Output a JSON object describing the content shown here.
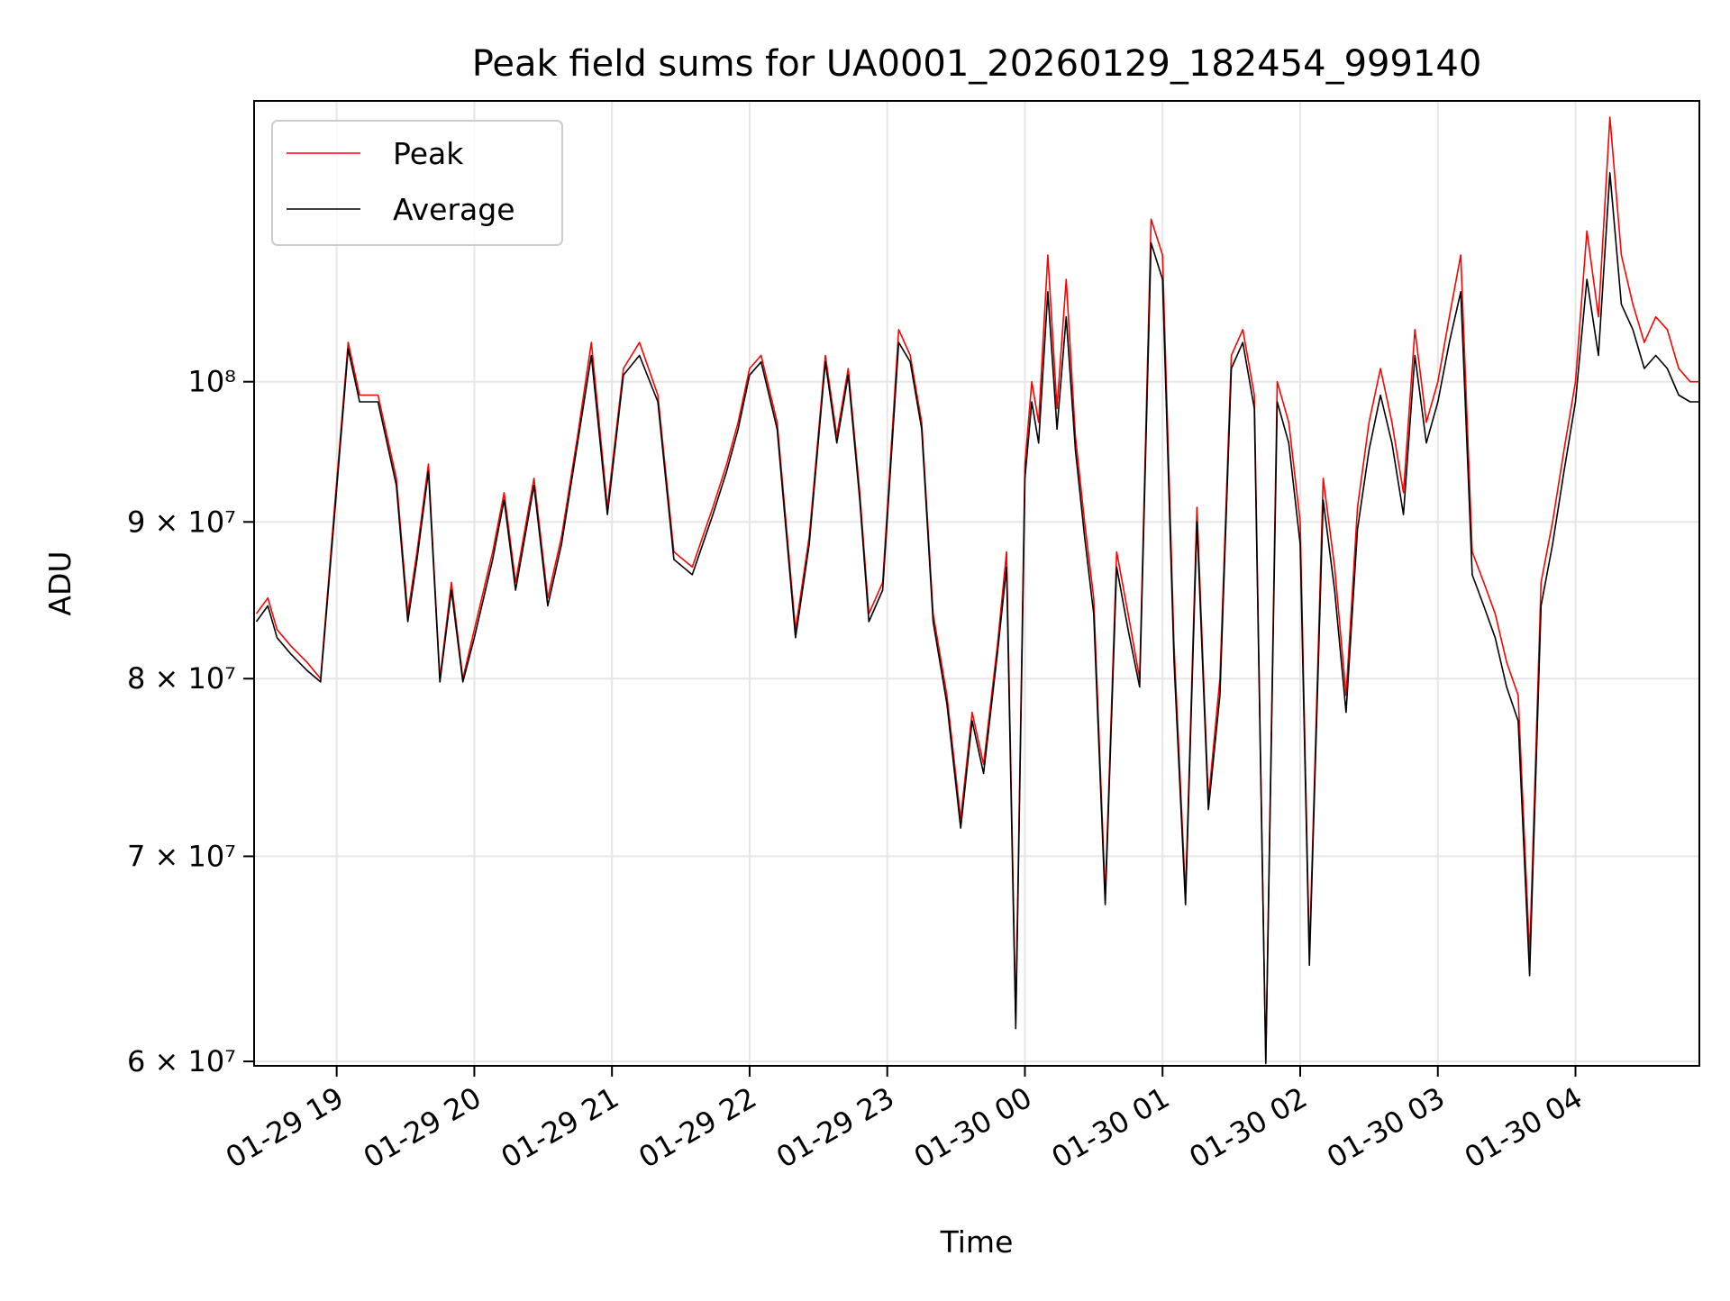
{
  "chart_data": {
    "type": "line",
    "title": "Peak field sums for UA0001_20260129_182454_999140",
    "xlabel": "Time",
    "ylabel": "ADU",
    "y_scale": "log",
    "grid": true,
    "legend_position": "top-left",
    "x_tick_labels": [
      "01-29 19",
      "01-29 20",
      "01-29 21",
      "01-29 22",
      "01-29 23",
      "01-30 00",
      "01-30 01",
      "01-30 02",
      "01-30 03",
      "01-30 04"
    ],
    "y_tick_labels": [
      {
        "value": 60000000,
        "label": "6 × 10⁷"
      },
      {
        "value": 70000000,
        "label": "7 × 10⁷"
      },
      {
        "value": 80000000,
        "label": "8 × 10⁷"
      },
      {
        "value": 90000000,
        "label": "9 × 10⁷"
      },
      {
        "value": 100000000,
        "label": "10⁸"
      }
    ],
    "x_range_hours_since_2026-01-29T18:24": [
      0,
      10.5
    ],
    "ylim": [
      59800000,
      123500000
    ],
    "series": [
      {
        "name": "Peak",
        "color": "#ff0000",
        "x_time": [
          "01-29 18:25",
          "01-29 18:30",
          "01-29 18:34",
          "01-29 18:40",
          "01-29 18:47",
          "01-29 18:53",
          "01-29 18:58",
          "01-29 19:05",
          "01-29 19:10",
          "01-29 19:18",
          "01-29 19:26",
          "01-29 19:31",
          "01-29 19:35",
          "01-29 19:40",
          "01-29 19:45",
          "01-29 19:50",
          "01-29 19:55",
          "01-29 20:00",
          "01-29 20:08",
          "01-29 20:13",
          "01-29 20:18",
          "01-29 20:26",
          "01-29 20:32",
          "01-29 20:38",
          "01-29 20:45",
          "01-29 20:51",
          "01-29 20:58",
          "01-29 21:05",
          "01-29 21:12",
          "01-29 21:20",
          "01-29 21:27",
          "01-29 21:35",
          "01-29 21:44",
          "01-29 21:50",
          "01-29 21:55",
          "01-29 22:00",
          "01-29 22:05",
          "01-29 22:12",
          "01-29 22:20",
          "01-29 22:26",
          "01-29 22:33",
          "01-29 22:38",
          "01-29 22:43",
          "01-29 22:48",
          "01-29 22:52",
          "01-29 22:58",
          "01-29 23:05",
          "01-29 23:10",
          "01-29 23:15",
          "01-29 23:20",
          "01-29 23:26",
          "01-29 23:32",
          "01-29 23:37",
          "01-29 23:42",
          "01-29 23:48",
          "01-29 23:52",
          "01-29 23:56",
          "01-30 00:00",
          "01-30 00:03",
          "01-30 00:06",
          "01-30 00:10",
          "01-30 00:14",
          "01-30 00:18",
          "01-30 00:22",
          "01-30 00:26",
          "01-30 00:30",
          "01-30 00:35",
          "01-30 00:40",
          "01-30 00:45",
          "01-30 00:50",
          "01-30 00:55",
          "01-30 01:00",
          "01-30 01:05",
          "01-30 01:10",
          "01-30 01:15",
          "01-30 01:20",
          "01-30 01:25",
          "01-30 01:30",
          "01-30 01:35",
          "01-30 01:40",
          "01-30 01:45",
          "01-30 01:50",
          "01-30 01:55",
          "01-30 02:00",
          "01-30 02:04",
          "01-30 02:10",
          "01-30 02:15",
          "01-30 02:20",
          "01-30 02:25",
          "01-30 02:30",
          "01-30 02:35",
          "01-30 02:40",
          "01-30 02:45",
          "01-30 02:50",
          "01-30 02:55",
          "01-30 03:00",
          "01-30 03:05",
          "01-30 03:10",
          "01-30 03:15",
          "01-30 03:20",
          "01-30 03:25",
          "01-30 03:30",
          "01-30 03:35",
          "01-30 03:40",
          "01-30 03:45",
          "01-30 03:50",
          "01-30 03:55",
          "01-30 04:00",
          "01-30 04:05",
          "01-30 04:10",
          "01-30 04:15",
          "01-30 04:20",
          "01-30 04:25",
          "01-30 04:30",
          "01-30 04:35",
          "01-30 04:40",
          "01-30 04:45",
          "01-30 04:50",
          "01-30 04:54"
        ],
        "values": [
          84000000,
          85000000,
          83000000,
          82000000,
          81000000,
          80000000,
          89000000,
          103000000,
          99000000,
          99000000,
          93000000,
          84000000,
          88000000,
          94000000,
          80000000,
          86000000,
          80000000,
          83000000,
          88000000,
          92000000,
          86000000,
          93000000,
          85000000,
          89000000,
          96000000,
          103000000,
          91000000,
          101000000,
          103000000,
          99000000,
          88000000,
          87000000,
          91000000,
          94000000,
          97000000,
          101000000,
          102000000,
          97000000,
          83000000,
          89000000,
          102000000,
          96000000,
          101000000,
          92000000,
          84000000,
          86000000,
          104000000,
          102000000,
          97000000,
          84000000,
          79000000,
          72000000,
          78000000,
          75000000,
          82000000,
          88000000,
          62000000,
          94000000,
          100000000,
          97000000,
          110000000,
          98000000,
          108000000,
          96000000,
          90000000,
          85000000,
          68000000,
          88000000,
          84000000,
          80000000,
          113000000,
          110000000,
          82000000,
          68000000,
          91000000,
          73000000,
          80000000,
          102000000,
          104000000,
          99000000,
          60000000,
          100000000,
          97000000,
          90000000,
          65000000,
          93000000,
          87000000,
          79000000,
          91000000,
          97000000,
          101000000,
          97000000,
          92000000,
          104000000,
          97000000,
          100000000,
          105000000,
          110000000,
          88000000,
          86000000,
          84000000,
          81000000,
          79000000,
          65000000,
          86000000,
          90000000,
          95000000,
          100000000,
          112000000,
          105000000,
          122000000,
          110000000,
          106000000,
          103000000,
          105000000,
          104000000,
          101000000,
          100000000,
          100000000
        ]
      },
      {
        "name": "Average",
        "color": "#000000",
        "x_time": [
          "01-29 18:25",
          "01-29 18:30",
          "01-29 18:34",
          "01-29 18:40",
          "01-29 18:47",
          "01-29 18:53",
          "01-29 18:58",
          "01-29 19:05",
          "01-29 19:10",
          "01-29 19:18",
          "01-29 19:26",
          "01-29 19:31",
          "01-29 19:35",
          "01-29 19:40",
          "01-29 19:45",
          "01-29 19:50",
          "01-29 19:55",
          "01-29 20:00",
          "01-29 20:08",
          "01-29 20:13",
          "01-29 20:18",
          "01-29 20:26",
          "01-29 20:32",
          "01-29 20:38",
          "01-29 20:45",
          "01-29 20:51",
          "01-29 20:58",
          "01-29 21:05",
          "01-29 21:12",
          "01-29 21:20",
          "01-29 21:27",
          "01-29 21:35",
          "01-29 21:44",
          "01-29 21:50",
          "01-29 21:55",
          "01-29 22:00",
          "01-29 22:05",
          "01-29 22:12",
          "01-29 22:20",
          "01-29 22:26",
          "01-29 22:33",
          "01-29 22:38",
          "01-29 22:43",
          "01-29 22:48",
          "01-29 22:52",
          "01-29 22:58",
          "01-29 23:05",
          "01-29 23:10",
          "01-29 23:15",
          "01-29 23:20",
          "01-29 23:26",
          "01-29 23:32",
          "01-29 23:37",
          "01-29 23:42",
          "01-29 23:48",
          "01-29 23:52",
          "01-29 23:56",
          "01-30 00:00",
          "01-30 00:03",
          "01-30 00:06",
          "01-30 00:10",
          "01-30 00:14",
          "01-30 00:18",
          "01-30 00:22",
          "01-30 00:26",
          "01-30 00:30",
          "01-30 00:35",
          "01-30 00:40",
          "01-30 00:45",
          "01-30 00:50",
          "01-30 00:55",
          "01-30 01:00",
          "01-30 01:05",
          "01-30 01:10",
          "01-30 01:15",
          "01-30 01:20",
          "01-30 01:25",
          "01-30 01:30",
          "01-30 01:35",
          "01-30 01:40",
          "01-30 01:45",
          "01-30 01:50",
          "01-30 01:55",
          "01-30 02:00",
          "01-30 02:04",
          "01-30 02:10",
          "01-30 02:15",
          "01-30 02:20",
          "01-30 02:25",
          "01-30 02:30",
          "01-30 02:35",
          "01-30 02:40",
          "01-30 02:45",
          "01-30 02:50",
          "01-30 02:55",
          "01-30 03:00",
          "01-30 03:05",
          "01-30 03:10",
          "01-30 03:15",
          "01-30 03:20",
          "01-30 03:25",
          "01-30 03:30",
          "01-30 03:35",
          "01-30 03:40",
          "01-30 03:45",
          "01-30 03:50",
          "01-30 03:55",
          "01-30 04:00",
          "01-30 04:05",
          "01-30 04:10",
          "01-30 04:15",
          "01-30 04:20",
          "01-30 04:25",
          "01-30 04:30",
          "01-30 04:35",
          "01-30 04:40",
          "01-30 04:45",
          "01-30 04:50",
          "01-30 04:54"
        ],
        "values": [
          83500000,
          84500000,
          82500000,
          81500000,
          80500000,
          79800000,
          88500000,
          102500000,
          98500000,
          98500000,
          92500000,
          83500000,
          87500000,
          93500000,
          79800000,
          85500000,
          79800000,
          82500000,
          87500000,
          91500000,
          85500000,
          92500000,
          84500000,
          88500000,
          95500000,
          102000000,
          90500000,
          100500000,
          102000000,
          98500000,
          87500000,
          86500000,
          90500000,
          93500000,
          96500000,
          100500000,
          101500000,
          96500000,
          82500000,
          88500000,
          101500000,
          95500000,
          100500000,
          91500000,
          83500000,
          85500000,
          103000000,
          101500000,
          96500000,
          83500000,
          78500000,
          71500000,
          77500000,
          74500000,
          81500000,
          87000000,
          61500000,
          93000000,
          98500000,
          95500000,
          107000000,
          96500000,
          105000000,
          95000000,
          89000000,
          84000000,
          67500000,
          87000000,
          83000000,
          79500000,
          111000000,
          108000000,
          81000000,
          67500000,
          90000000,
          72500000,
          79000000,
          101000000,
          103000000,
          98000000,
          59900000,
          98500000,
          95500000,
          88500000,
          64500000,
          91500000,
          85500000,
          78000000,
          89500000,
          95000000,
          99000000,
          95500000,
          90500000,
          102000000,
          95500000,
          98500000,
          103000000,
          107000000,
          86500000,
          84500000,
          82500000,
          79500000,
          77500000,
          64000000,
          84500000,
          88500000,
          93500000,
          98500000,
          108000000,
          102000000,
          117000000,
          106000000,
          104000000,
          101000000,
          102000000,
          101000000,
          99000000,
          98500000,
          98500000
        ]
      }
    ]
  }
}
